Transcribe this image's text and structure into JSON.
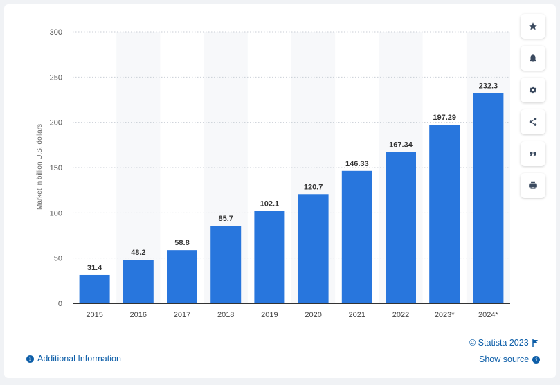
{
  "chart_data": {
    "type": "bar",
    "categories": [
      "2015",
      "2016",
      "2017",
      "2018",
      "2019",
      "2020",
      "2021",
      "2022",
      "2023*",
      "2024*"
    ],
    "values": [
      31.4,
      48.2,
      58.8,
      85.7,
      102.1,
      120.7,
      146.33,
      167.34,
      197.29,
      232.3
    ],
    "value_labels": [
      "31.4",
      "48.2",
      "58.8",
      "85.7",
      "102.1",
      "120.7",
      "146.33",
      "167.34",
      "197.29",
      "232.3"
    ],
    "ylabel": "Market in billion U.S. dollars",
    "xlabel": "",
    "ylim": [
      0,
      300
    ],
    "yticks": [
      0,
      50,
      100,
      150,
      200,
      250,
      300
    ],
    "bar_color": "#2876dd",
    "grid": true,
    "legend": "none"
  },
  "toolbar": {
    "buttons": [
      {
        "name": "favorite-button",
        "icon": "star-icon"
      },
      {
        "name": "notification-button",
        "icon": "bell-icon"
      },
      {
        "name": "settings-button",
        "icon": "gear-icon"
      },
      {
        "name": "share-button",
        "icon": "share-icon"
      },
      {
        "name": "cite-button",
        "icon": "quote-icon"
      },
      {
        "name": "print-button",
        "icon": "printer-icon"
      }
    ]
  },
  "footer": {
    "credit": "© Statista 2023",
    "show_source": "Show source",
    "additional_info": "Additional Information"
  }
}
